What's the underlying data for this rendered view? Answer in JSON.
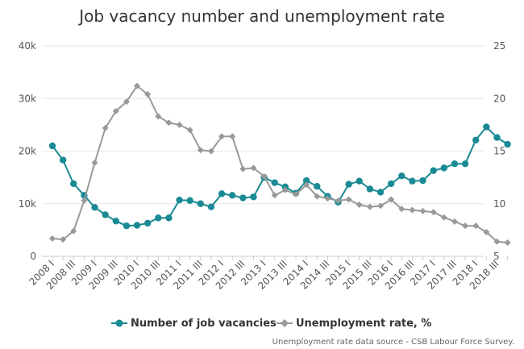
{
  "chart_data": {
    "type": "line",
    "title": "Job vacancy number and unemployment rate",
    "source_note": "Unemployment rate data source - CSB Labour Force Survey.",
    "x_tick_labels": [
      "2008 I",
      "2008 III",
      "2009 I",
      "2009 III",
      "2010 I",
      "2010 III",
      "2011 I",
      "2011 III",
      "2012 I",
      "2012 III",
      "2013 I",
      "2013 III",
      "2014 I",
      "2014 III",
      "2015 I",
      "2015 III",
      "2016 I",
      "2016 III",
      "2017 I",
      "2017 III",
      "2018 I",
      "2018 III"
    ],
    "quarters_count": 44,
    "y_left": {
      "min": 0,
      "max": 40000,
      "ticks": [
        0,
        10000,
        20000,
        30000,
        40000
      ],
      "tick_labels": [
        "0",
        "10k",
        "20k",
        "30k",
        "40k"
      ]
    },
    "y_right": {
      "min": 5,
      "max": 25,
      "ticks": [
        5,
        10,
        15,
        20,
        25
      ],
      "tick_labels": [
        "5",
        "10",
        "15",
        "20",
        "25"
      ]
    },
    "grid": true,
    "legend_position": "bottom",
    "series": [
      {
        "name": "Number of job vacancies",
        "axis": "left",
        "color": "#1a8a94",
        "marker": "circle",
        "values": [
          21000,
          18300,
          13800,
          11600,
          9300,
          7900,
          6700,
          5800,
          5900,
          6300,
          7300,
          7300,
          10700,
          10600,
          10000,
          9400,
          11900,
          11600,
          11100,
          11300,
          15000,
          14000,
          13200,
          12000,
          14400,
          13300,
          11400,
          10300,
          13700,
          14300,
          12800,
          12200,
          13800,
          15300,
          14300,
          14400,
          16300,
          16800,
          17600,
          17600,
          22100,
          24600,
          22600,
          21300
        ]
      },
      {
        "name": "Unemployment rate, %",
        "axis": "right",
        "color": "#999999",
        "marker": "diamond",
        "values": [
          6.7,
          6.6,
          7.4,
          10.3,
          13.9,
          17.2,
          18.8,
          19.7,
          21.2,
          20.4,
          18.3,
          17.7,
          17.5,
          17.0,
          15.1,
          15.0,
          16.4,
          16.4,
          13.3,
          13.4,
          12.6,
          10.8,
          11.3,
          10.9,
          11.8,
          10.7,
          10.5,
          10.3,
          10.4,
          9.9,
          9.7,
          9.8,
          10.4,
          9.5,
          9.4,
          9.3,
          9.2,
          8.7,
          8.3,
          7.9,
          7.9,
          7.3,
          6.4,
          6.3
        ]
      }
    ]
  }
}
